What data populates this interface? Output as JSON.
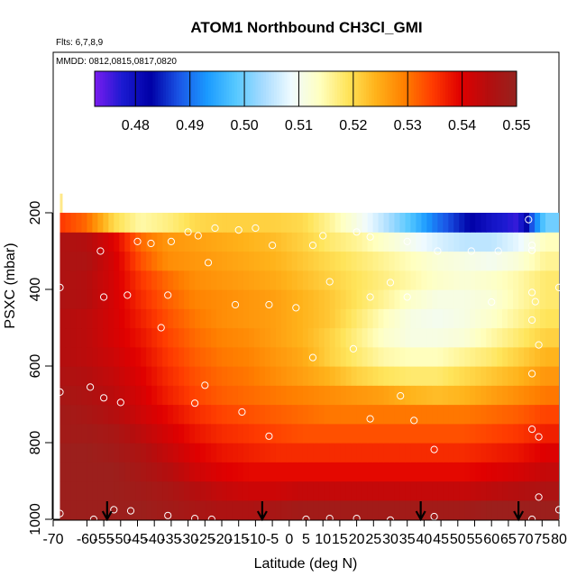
{
  "chart_data": {
    "type": "heatmap",
    "title": "ATOM1 Northbound CH3Cl_GMI",
    "subtitle_flights": "Flts: 6,7,8,9",
    "subtitle_dates": "MMDD: 0812,0815,0817,0820",
    "xlabel": "Latitude (deg N)",
    "ylabel": "PSXC (mbar)",
    "xlim": [
      -70,
      80
    ],
    "ylim": [
      1000,
      200
    ],
    "x_ticks": [
      "-70",
      "-55",
      "-40",
      "-25",
      "-10",
      "10",
      "40",
      "70"
    ],
    "x_ticks_minor": [
      "-60",
      "-50",
      "-45",
      "-35",
      "-30",
      "-20",
      "-15",
      "-5",
      "0",
      "5",
      "15",
      "20",
      "25",
      "30",
      "35",
      "45",
      "50",
      "55",
      "60",
      "65",
      "75",
      "80"
    ],
    "y_ticks": [
      "200",
      "400",
      "600",
      "800",
      "1000"
    ],
    "colorbar": {
      "min": 0.4725,
      "max": 0.55,
      "labels": [
        "0.48",
        "0.49",
        "0.50",
        "0.51",
        "0.52",
        "0.53",
        "0.54",
        "0.55"
      ],
      "colors": [
        "#7a1cf0",
        "#1a1ad0",
        "#0000a6",
        "#1a55e6",
        "#1a9aff",
        "#55c8ff",
        "#a8dcff",
        "#f0fbff",
        "#ffffc0",
        "#ffe45a",
        "#ffb21a",
        "#ff8000",
        "#ff3c00",
        "#e00000",
        "#b40e0e",
        "#96231f"
      ]
    },
    "arrow_latitudes": [
      -54,
      -8,
      39,
      68
    ],
    "levels_mbar": [
      1000,
      950,
      900,
      850,
      800,
      750,
      700,
      650,
      600,
      550,
      500,
      450,
      400,
      350,
      300,
      250
    ],
    "grid_latitudes": [
      -68,
      -60,
      -52,
      -44,
      -36,
      -28,
      -20,
      -12,
      -4,
      4,
      12,
      20,
      28,
      36,
      44,
      52,
      60,
      68,
      76
    ],
    "values": [
      [
        0.549,
        0.549,
        0.549,
        0.549,
        0.548,
        0.547,
        0.546,
        0.546,
        0.547,
        0.548,
        0.548,
        0.548,
        0.548,
        0.548,
        0.548,
        0.548,
        0.549,
        0.549,
        0.549
      ],
      [
        0.549,
        0.549,
        0.549,
        0.548,
        0.547,
        0.545,
        0.543,
        0.542,
        0.542,
        0.543,
        0.543,
        0.543,
        0.543,
        0.543,
        0.543,
        0.543,
        0.544,
        0.545,
        0.546
      ],
      [
        0.549,
        0.549,
        0.549,
        0.547,
        0.545,
        0.542,
        0.54,
        0.539,
        0.539,
        0.539,
        0.539,
        0.539,
        0.539,
        0.539,
        0.539,
        0.539,
        0.54,
        0.541,
        0.543
      ],
      [
        0.549,
        0.549,
        0.548,
        0.546,
        0.543,
        0.54,
        0.538,
        0.537,
        0.536,
        0.536,
        0.536,
        0.536,
        0.536,
        0.536,
        0.536,
        0.536,
        0.537,
        0.538,
        0.54
      ],
      [
        0.548,
        0.548,
        0.547,
        0.544,
        0.541,
        0.538,
        0.536,
        0.535,
        0.534,
        0.533,
        0.533,
        0.533,
        0.533,
        0.533,
        0.533,
        0.533,
        0.534,
        0.535,
        0.537
      ],
      [
        0.548,
        0.547,
        0.545,
        0.542,
        0.539,
        0.536,
        0.534,
        0.533,
        0.532,
        0.531,
        0.53,
        0.53,
        0.53,
        0.53,
        0.53,
        0.53,
        0.531,
        0.532,
        0.534
      ],
      [
        0.547,
        0.546,
        0.544,
        0.541,
        0.537,
        0.534,
        0.532,
        0.531,
        0.53,
        0.529,
        0.528,
        0.527,
        0.526,
        0.524,
        0.523,
        0.524,
        0.526,
        0.528,
        0.53
      ],
      [
        0.546,
        0.545,
        0.543,
        0.54,
        0.536,
        0.533,
        0.531,
        0.53,
        0.528,
        0.526,
        0.524,
        0.521,
        0.519,
        0.518,
        0.518,
        0.52,
        0.522,
        0.524,
        0.527
      ],
      [
        0.545,
        0.544,
        0.542,
        0.539,
        0.535,
        0.532,
        0.53,
        0.529,
        0.527,
        0.525,
        0.521,
        0.518,
        0.515,
        0.514,
        0.514,
        0.516,
        0.518,
        0.521,
        0.524
      ],
      [
        0.545,
        0.544,
        0.541,
        0.538,
        0.534,
        0.531,
        0.529,
        0.528,
        0.526,
        0.524,
        0.521,
        0.517,
        0.513,
        0.511,
        0.511,
        0.512,
        0.515,
        0.518,
        0.521
      ],
      [
        0.545,
        0.544,
        0.541,
        0.537,
        0.533,
        0.53,
        0.528,
        0.527,
        0.526,
        0.524,
        0.522,
        0.518,
        0.514,
        0.511,
        0.51,
        0.511,
        0.513,
        0.516,
        0.519
      ],
      [
        0.546,
        0.545,
        0.541,
        0.536,
        0.532,
        0.529,
        0.528,
        0.527,
        0.526,
        0.524,
        0.522,
        0.519,
        0.516,
        0.513,
        0.511,
        0.511,
        0.512,
        0.515,
        0.518
      ],
      [
        0.546,
        0.545,
        0.541,
        0.535,
        0.531,
        0.528,
        0.527,
        0.526,
        0.525,
        0.523,
        0.521,
        0.519,
        0.517,
        0.515,
        0.513,
        0.512,
        0.513,
        0.515,
        0.518
      ],
      [
        0.546,
        0.546,
        0.541,
        0.533,
        0.528,
        0.527,
        0.526,
        0.525,
        0.524,
        0.522,
        0.52,
        0.518,
        0.516,
        0.514,
        0.512,
        0.511,
        0.51,
        0.512,
        0.516
      ],
      [
        0.546,
        0.545,
        0.54,
        0.531,
        0.527,
        0.526,
        0.525,
        0.524,
        0.523,
        0.521,
        0.518,
        0.516,
        0.513,
        0.51,
        0.507,
        0.505,
        0.505,
        0.508,
        0.514
      ],
      [
        0.535,
        0.531,
        0.52,
        0.515,
        0.517,
        0.52,
        0.521,
        0.521,
        0.521,
        0.52,
        0.516,
        0.511,
        0.505,
        0.498,
        0.49,
        0.484,
        0.479,
        0.476,
        0.5
      ]
    ],
    "flight_points": [
      [
        -68,
        985
      ],
      [
        -58,
        1000
      ],
      [
        -52,
        975
      ],
      [
        -47,
        978
      ],
      [
        -36,
        990
      ],
      [
        -28,
        998
      ],
      [
        -23,
        1000
      ],
      [
        5,
        1000
      ],
      [
        12,
        998
      ],
      [
        20,
        998
      ],
      [
        30,
        1002
      ],
      [
        43,
        993
      ],
      [
        72,
        1000
      ],
      [
        74,
        942
      ],
      [
        80,
        975
      ],
      [
        -68,
        668
      ],
      [
        -59,
        655
      ],
      [
        -55,
        683
      ],
      [
        -50,
        695
      ],
      [
        -28,
        697
      ],
      [
        -25,
        650
      ],
      [
        -14,
        720
      ],
      [
        -6,
        783
      ],
      [
        24,
        738
      ],
      [
        33,
        678
      ],
      [
        37,
        742
      ],
      [
        43,
        818
      ],
      [
        72,
        765
      ],
      [
        74,
        785
      ],
      [
        72,
        620
      ],
      [
        -68,
        395
      ],
      [
        -55,
        420
      ],
      [
        -48,
        415
      ],
      [
        -36,
        415
      ],
      [
        -38,
        500
      ],
      [
        -16,
        440
      ],
      [
        -6,
        440
      ],
      [
        2,
        448
      ],
      [
        7,
        578
      ],
      [
        12,
        380
      ],
      [
        19,
        555
      ],
      [
        24,
        420
      ],
      [
        30,
        382
      ],
      [
        35,
        420
      ],
      [
        60,
        433
      ],
      [
        72,
        480
      ],
      [
        74,
        545
      ],
      [
        72,
        408
      ],
      [
        73,
        432
      ],
      [
        80,
        395
      ],
      [
        -56,
        300
      ],
      [
        -45,
        275
      ],
      [
        -41,
        280
      ],
      [
        -35,
        275
      ],
      [
        -30,
        250
      ],
      [
        -27,
        260
      ],
      [
        -22,
        240
      ],
      [
        -15,
        245
      ],
      [
        -10,
        240
      ],
      [
        -5,
        285
      ],
      [
        7,
        285
      ],
      [
        10,
        260
      ],
      [
        20,
        250
      ],
      [
        24,
        263
      ],
      [
        35,
        275
      ],
      [
        44,
        300
      ],
      [
        54,
        300
      ],
      [
        62,
        300
      ],
      [
        71,
        218
      ],
      [
        72,
        285
      ],
      [
        72,
        298
      ],
      [
        -24,
        330
      ]
    ]
  }
}
